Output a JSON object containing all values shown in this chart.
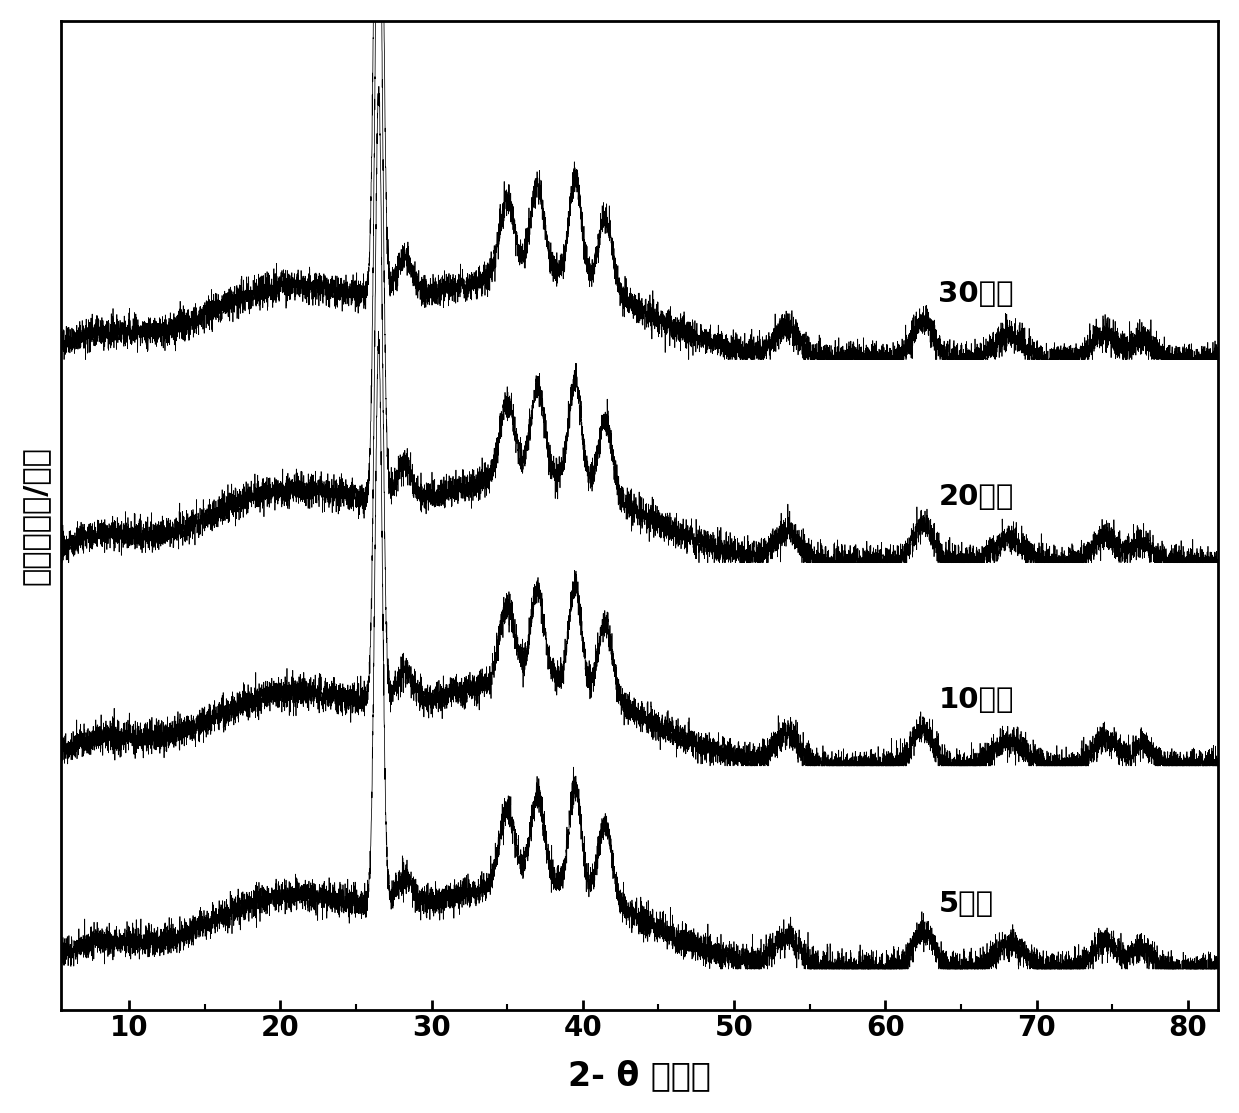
{
  "xlabel": "2- θ （度）",
  "ylabel": "强度（计数/秒）",
  "xlim": [
    5.5,
    82
  ],
  "ylim": [
    -0.3,
    7.0
  ],
  "xticks": [
    10,
    20,
    30,
    40,
    50,
    60,
    70,
    80
  ],
  "labels": [
    "5分钟",
    "10分钟",
    "20分钟",
    "30分钟"
  ],
  "offsets": [
    0.0,
    1.5,
    3.0,
    4.5
  ],
  "background_color": "#ffffff",
  "line_color": "#000000",
  "xlabel_fontsize": 24,
  "ylabel_fontsize": 22,
  "tick_fontsize": 20,
  "label_fontsize": 21
}
